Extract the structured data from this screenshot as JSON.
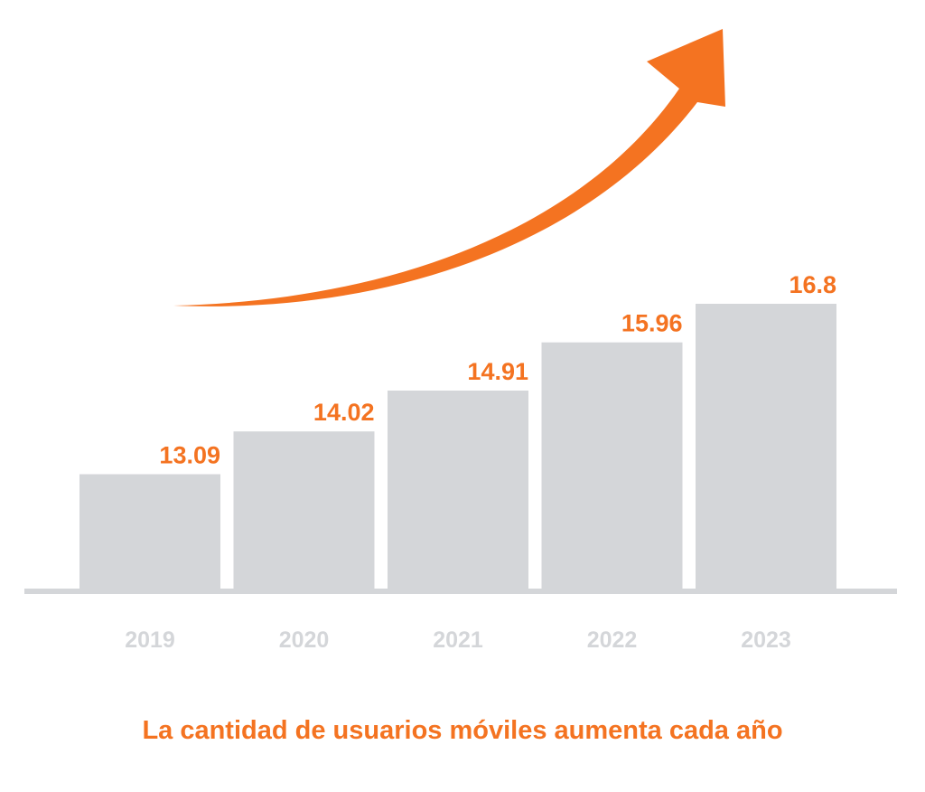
{
  "colors": {
    "bar": "#d4d6d9",
    "axis": "#d4d6d9",
    "accent": "#f47321",
    "tick": "#d4d6d9",
    "background": "#ffffff"
  },
  "decoration": {
    "arrow_icon": "trend-up-arrow-icon"
  },
  "chart_data": {
    "type": "bar",
    "categories": [
      "2019",
      "2020",
      "2021",
      "2022",
      "2023"
    ],
    "values": [
      13.09,
      14.02,
      14.91,
      15.96,
      16.8
    ],
    "value_labels": [
      "13.09",
      "14.02",
      "14.91",
      "15.96",
      "16.8"
    ],
    "title": "",
    "caption": "La cantidad de usuarios móviles aumenta cada año",
    "xlabel": "",
    "ylabel": "",
    "ylim": [
      10.6,
      17.2
    ],
    "grid": false,
    "legend": "none"
  }
}
